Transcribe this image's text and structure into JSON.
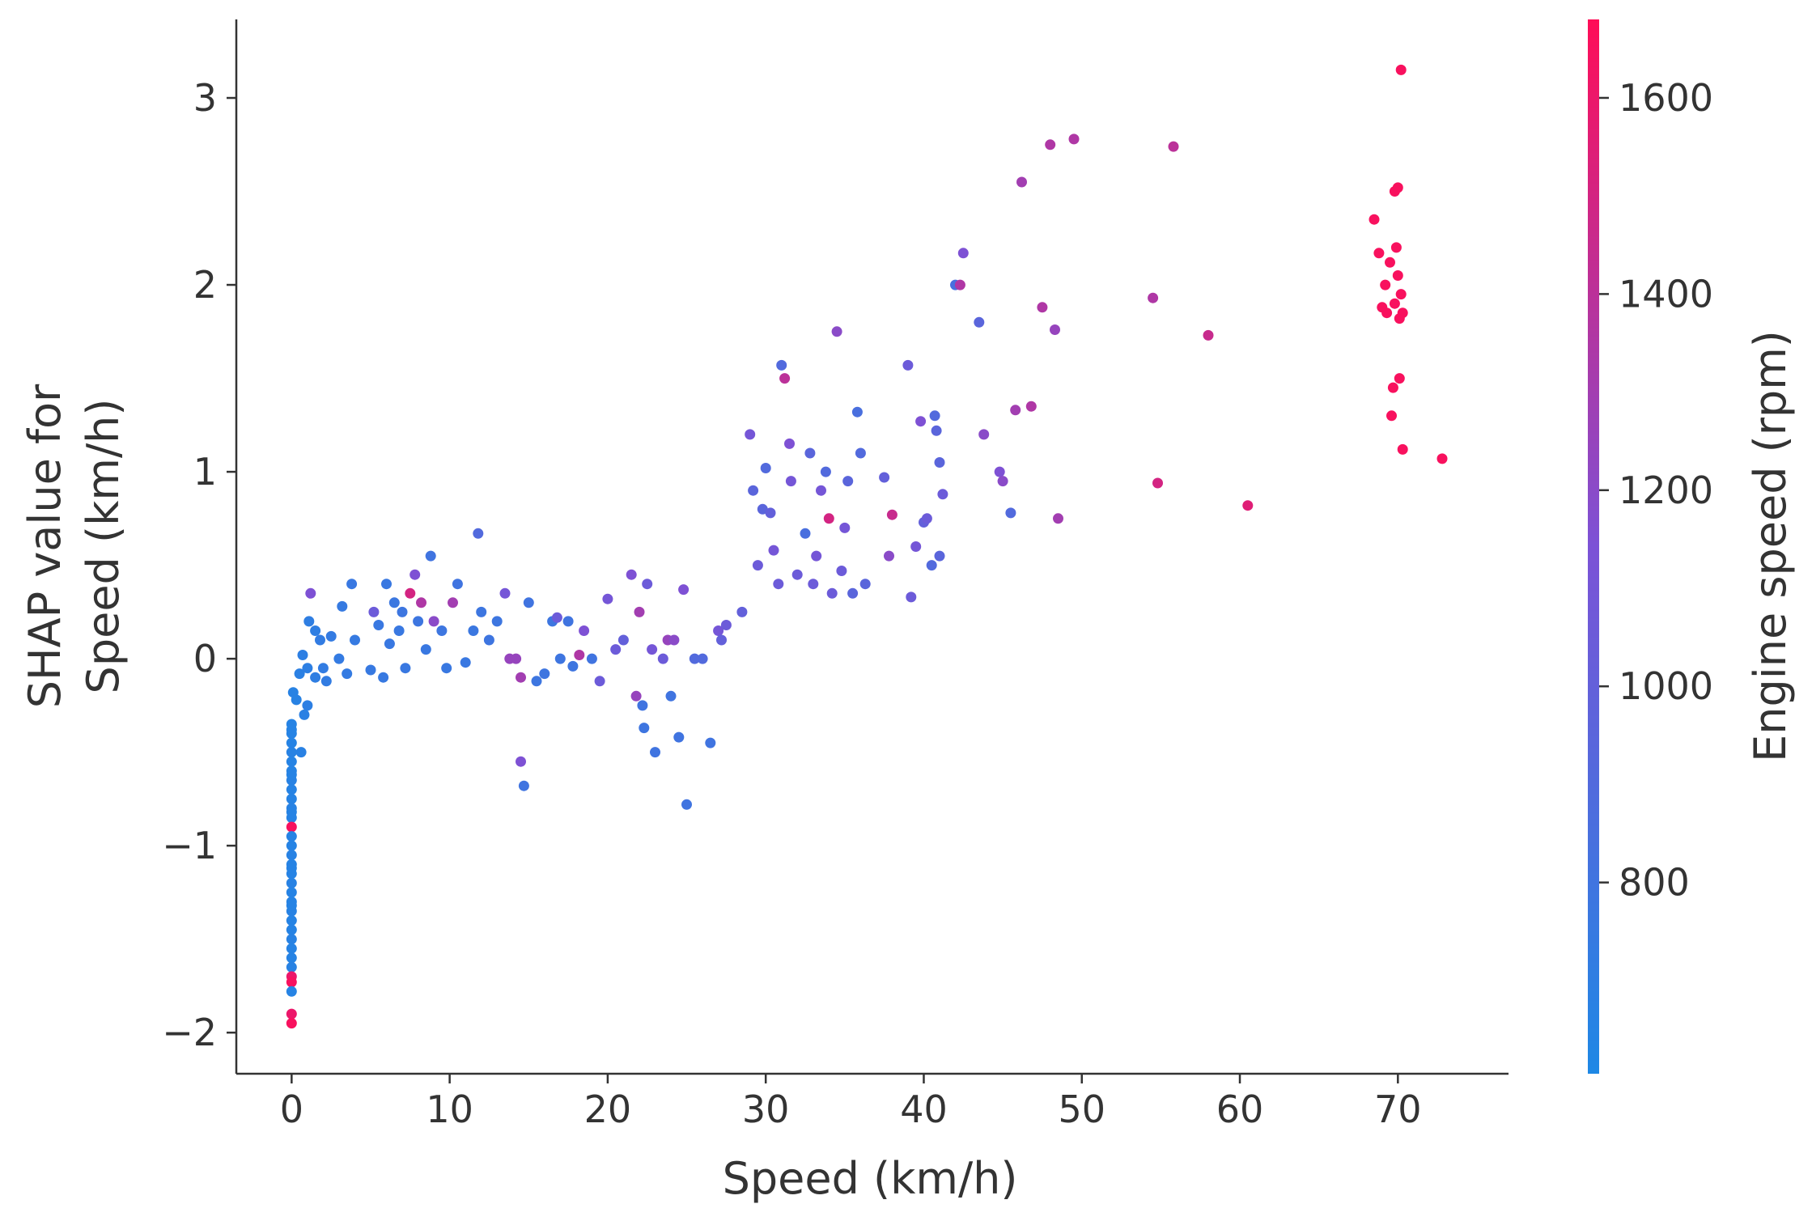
{
  "chart_data": {
    "type": "scatter",
    "title": "",
    "xlabel": "Speed (km/h)",
    "ylabel_lines": [
      "SHAP value for",
      "Speed (km/h)"
    ],
    "xlim": [
      -3.5,
      77
    ],
    "ylim": [
      -2.22,
      3.42
    ],
    "x_ticks": [
      0,
      10,
      20,
      30,
      40,
      50,
      60,
      70
    ],
    "x_tick_labels": [
      "0",
      "10",
      "20",
      "30",
      "40",
      "50",
      "60",
      "70"
    ],
    "y_ticks": [
      -2,
      -1,
      0,
      1,
      2,
      3
    ],
    "y_tick_labels": [
      "−2",
      "−1",
      "0",
      "1",
      "2",
      "3"
    ],
    "grid": false,
    "colorbar": {
      "label": "Engine speed (rpm)",
      "range": [
        605,
        1680
      ],
      "ticks": [
        800,
        1000,
        1200,
        1400,
        1600
      ],
      "tick_labels": [
        "800",
        "1000",
        "1200",
        "1400",
        "1600"
      ],
      "color_low": "#1e88e5",
      "color_high": "#ff0d57"
    },
    "points": [
      [
        0,
        -0.35,
        650
      ],
      [
        0,
        -0.4,
        650
      ],
      [
        0,
        -0.45,
        650
      ],
      [
        0,
        -0.5,
        660
      ],
      [
        0,
        -0.55,
        650
      ],
      [
        0,
        -0.6,
        650
      ],
      [
        0,
        -0.65,
        660
      ],
      [
        0,
        -0.7,
        650
      ],
      [
        0,
        -0.75,
        650
      ],
      [
        0,
        -0.8,
        660
      ],
      [
        0,
        -0.85,
        650
      ],
      [
        0,
        -0.9,
        1650
      ],
      [
        0,
        -0.95,
        650
      ],
      [
        0,
        -1.0,
        650
      ],
      [
        0,
        -1.05,
        660
      ],
      [
        0,
        -1.1,
        650
      ],
      [
        0,
        -1.15,
        650
      ],
      [
        0,
        -1.2,
        660
      ],
      [
        0,
        -1.25,
        650
      ],
      [
        0,
        -1.3,
        650
      ],
      [
        0,
        -1.35,
        660
      ],
      [
        0,
        -1.4,
        650
      ],
      [
        0,
        -1.45,
        650
      ],
      [
        0,
        -1.5,
        660
      ],
      [
        0,
        -1.55,
        650
      ],
      [
        0,
        -1.6,
        650
      ],
      [
        0,
        -1.65,
        660
      ],
      [
        0,
        -1.7,
        1600
      ],
      [
        0,
        -1.73,
        1650
      ],
      [
        0,
        -1.78,
        650
      ],
      [
        0,
        -1.9,
        1600
      ],
      [
        0,
        -1.95,
        1650
      ],
      [
        0,
        -0.38,
        650
      ],
      [
        0,
        -0.62,
        650
      ],
      [
        0,
        -0.82,
        650
      ],
      [
        0,
        -1.12,
        650
      ],
      [
        0,
        -1.32,
        650
      ],
      [
        0.1,
        -0.18,
        660
      ],
      [
        0.3,
        -0.22,
        660
      ],
      [
        0.6,
        -0.5,
        670
      ],
      [
        0.8,
        -0.3,
        680
      ],
      [
        1.0,
        -0.25,
        690
      ],
      [
        0.7,
        0.02,
        690
      ],
      [
        0.5,
        -0.08,
        680
      ],
      [
        1.0,
        -0.05,
        690
      ],
      [
        1.1,
        0.2,
        700
      ],
      [
        1.2,
        0.35,
        1150
      ],
      [
        1.5,
        0.15,
        700
      ],
      [
        1.8,
        0.1,
        720
      ],
      [
        1.5,
        -0.1,
        700
      ],
      [
        2.0,
        -0.05,
        720
      ],
      [
        2.2,
        -0.12,
        720
      ],
      [
        2.5,
        0.12,
        730
      ],
      [
        3.0,
        0.0,
        730
      ],
      [
        3.2,
        0.28,
        740
      ],
      [
        3.5,
        -0.08,
        730
      ],
      [
        3.8,
        0.4,
        760
      ],
      [
        4.0,
        0.1,
        740
      ],
      [
        5.0,
        -0.06,
        750
      ],
      [
        5.2,
        0.25,
        1050
      ],
      [
        5.5,
        0.18,
        760
      ],
      [
        5.8,
        -0.1,
        750
      ],
      [
        6.0,
        0.4,
        760
      ],
      [
        6.2,
        0.08,
        760
      ],
      [
        6.5,
        0.3,
        770
      ],
      [
        6.8,
        0.15,
        760
      ],
      [
        7.0,
        0.25,
        780
      ],
      [
        7.2,
        -0.05,
        760
      ],
      [
        7.5,
        0.35,
        1500
      ],
      [
        7.8,
        0.45,
        1150
      ],
      [
        8.0,
        0.2,
        780
      ],
      [
        8.2,
        0.3,
        1350
      ],
      [
        8.5,
        0.05,
        760
      ],
      [
        8.8,
        0.55,
        800
      ],
      [
        9.0,
        0.2,
        1200
      ],
      [
        9.5,
        0.15,
        780
      ],
      [
        9.8,
        -0.05,
        760
      ],
      [
        10.2,
        0.3,
        1300
      ],
      [
        10.5,
        0.4,
        800
      ],
      [
        11.0,
        -0.02,
        760
      ],
      [
        11.5,
        0.15,
        770
      ],
      [
        11.8,
        0.67,
        900
      ],
      [
        12.0,
        0.25,
        780
      ],
      [
        12.5,
        0.1,
        790
      ],
      [
        13.0,
        0.2,
        780
      ],
      [
        13.5,
        0.35,
        1100
      ],
      [
        13.8,
        0.0,
        1250
      ],
      [
        14.2,
        0.0,
        1250
      ],
      [
        14.5,
        -0.1,
        1300
      ],
      [
        14.5,
        -0.55,
        1150
      ],
      [
        14.7,
        -0.68,
        800
      ],
      [
        15.0,
        0.3,
        800
      ],
      [
        15.5,
        -0.12,
        780
      ],
      [
        16.0,
        -0.08,
        790
      ],
      [
        16.5,
        0.2,
        780
      ],
      [
        16.8,
        0.22,
        1050
      ],
      [
        17.0,
        0.0,
        790
      ],
      [
        17.5,
        0.2,
        800
      ],
      [
        17.8,
        -0.04,
        790
      ],
      [
        18.2,
        0.02,
        1350
      ],
      [
        18.5,
        0.15,
        1150
      ],
      [
        19.0,
        0.0,
        800
      ],
      [
        19.5,
        -0.12,
        1050
      ],
      [
        20.0,
        0.32,
        1100
      ],
      [
        20.5,
        0.05,
        1050
      ],
      [
        21.0,
        0.1,
        1000
      ],
      [
        21.5,
        0.45,
        1150
      ],
      [
        21.8,
        -0.2,
        1250
      ],
      [
        22.0,
        0.25,
        1300
      ],
      [
        22.2,
        -0.25,
        800
      ],
      [
        22.3,
        -0.37,
        790
      ],
      [
        22.5,
        0.4,
        1050
      ],
      [
        22.8,
        0.05,
        1100
      ],
      [
        23.0,
        -0.5,
        800
      ],
      [
        23.5,
        0.0,
        1050
      ],
      [
        23.8,
        0.1,
        1250
      ],
      [
        24.0,
        -0.2,
        800
      ],
      [
        24.2,
        0.1,
        1200
      ],
      [
        24.5,
        -0.42,
        800
      ],
      [
        24.8,
        0.37,
        1150
      ],
      [
        25.0,
        -0.78,
        800
      ],
      [
        25.5,
        0.0,
        900
      ],
      [
        26.0,
        0.0,
        900
      ],
      [
        26.5,
        -0.45,
        800
      ],
      [
        27.0,
        0.15,
        1100
      ],
      [
        27.2,
        0.1,
        1000
      ],
      [
        27.5,
        0.18,
        1050
      ],
      [
        28.5,
        0.25,
        1000
      ],
      [
        29.0,
        1.2,
        1100
      ],
      [
        29.2,
        0.9,
        950
      ],
      [
        29.5,
        0.5,
        1050
      ],
      [
        29.8,
        0.8,
        950
      ],
      [
        30.0,
        1.02,
        900
      ],
      [
        30.3,
        0.78,
        1000
      ],
      [
        30.5,
        0.58,
        1100
      ],
      [
        30.8,
        0.4,
        1050
      ],
      [
        31.0,
        1.57,
        900
      ],
      [
        31.2,
        1.5,
        1400
      ],
      [
        31.5,
        1.15,
        1150
      ],
      [
        31.6,
        0.95,
        1100
      ],
      [
        32.0,
        0.45,
        1050
      ],
      [
        32.5,
        0.67,
        850
      ],
      [
        32.8,
        1.1,
        950
      ],
      [
        33.0,
        0.4,
        1050
      ],
      [
        33.2,
        0.55,
        1100
      ],
      [
        33.5,
        0.9,
        1100
      ],
      [
        33.8,
        1.0,
        900
      ],
      [
        34.0,
        0.75,
        1500
      ],
      [
        34.2,
        0.35,
        1050
      ],
      [
        34.5,
        1.75,
        1200
      ],
      [
        34.8,
        0.47,
        1050
      ],
      [
        35.0,
        0.7,
        1100
      ],
      [
        35.2,
        0.95,
        950
      ],
      [
        35.5,
        0.35,
        950
      ],
      [
        35.8,
        1.32,
        850
      ],
      [
        36.0,
        1.1,
        900
      ],
      [
        36.3,
        0.4,
        950
      ],
      [
        37.5,
        0.97,
        1000
      ],
      [
        37.8,
        0.55,
        1200
      ],
      [
        38.0,
        0.77,
        1450
      ],
      [
        39.0,
        1.57,
        1050
      ],
      [
        39.2,
        0.33,
        1050
      ],
      [
        39.5,
        0.6,
        1100
      ],
      [
        39.8,
        1.27,
        1150
      ],
      [
        40.0,
        0.73,
        1000
      ],
      [
        40.2,
        0.75,
        1050
      ],
      [
        40.5,
        0.5,
        900
      ],
      [
        40.7,
        1.3,
        900
      ],
      [
        40.8,
        1.22,
        950
      ],
      [
        41.0,
        1.05,
        950
      ],
      [
        41.0,
        0.55,
        950
      ],
      [
        41.2,
        0.88,
        1050
      ],
      [
        42.0,
        2.0,
        850
      ],
      [
        42.3,
        2.0,
        1350
      ],
      [
        42.5,
        2.17,
        1150
      ],
      [
        43.5,
        1.8,
        950
      ],
      [
        43.8,
        1.2,
        1200
      ],
      [
        44.8,
        1.0,
        1150
      ],
      [
        45.0,
        0.95,
        1200
      ],
      [
        45.5,
        0.78,
        900
      ],
      [
        45.8,
        1.33,
        1300
      ],
      [
        46.2,
        2.55,
        1300
      ],
      [
        46.8,
        1.35,
        1350
      ],
      [
        47.5,
        1.88,
        1350
      ],
      [
        48.0,
        2.75,
        1350
      ],
      [
        48.3,
        1.76,
        1250
      ],
      [
        48.5,
        0.75,
        1300
      ],
      [
        49.5,
        2.78,
        1350
      ],
      [
        54.5,
        1.93,
        1350
      ],
      [
        54.8,
        0.94,
        1500
      ],
      [
        55.8,
        2.74,
        1400
      ],
      [
        58.0,
        1.73,
        1450
      ],
      [
        60.5,
        0.82,
        1550
      ],
      [
        68.5,
        2.35,
        1650
      ],
      [
        68.8,
        2.17,
        1650
      ],
      [
        69.0,
        1.88,
        1650
      ],
      [
        69.2,
        2.0,
        1650
      ],
      [
        69.3,
        1.85,
        1650
      ],
      [
        69.5,
        2.12,
        1650
      ],
      [
        69.6,
        1.3,
        1650
      ],
      [
        69.7,
        1.45,
        1650
      ],
      [
        69.8,
        2.5,
        1650
      ],
      [
        69.8,
        1.9,
        1650
      ],
      [
        69.9,
        2.2,
        1650
      ],
      [
        70.0,
        2.52,
        1650
      ],
      [
        70.0,
        2.05,
        1650
      ],
      [
        70.1,
        1.82,
        1650
      ],
      [
        70.1,
        1.5,
        1650
      ],
      [
        70.2,
        3.15,
        1650
      ],
      [
        70.2,
        1.95,
        1650
      ],
      [
        70.3,
        1.12,
        1650
      ],
      [
        70.3,
        1.85,
        1650
      ],
      [
        72.8,
        1.07,
        1650
      ]
    ]
  }
}
